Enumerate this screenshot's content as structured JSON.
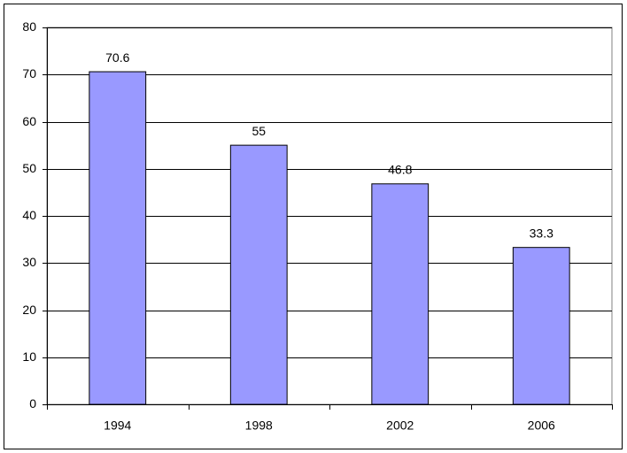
{
  "chart_data": {
    "type": "bar",
    "categories": [
      "1994",
      "1998",
      "2002",
      "2006"
    ],
    "values": [
      70.6,
      55,
      46.8,
      33.3
    ],
    "color": "#9999ff",
    "ylim": [
      0,
      80
    ],
    "yticks": [
      0,
      10,
      20,
      30,
      40,
      50,
      60,
      70,
      80
    ],
    "grid": true
  }
}
